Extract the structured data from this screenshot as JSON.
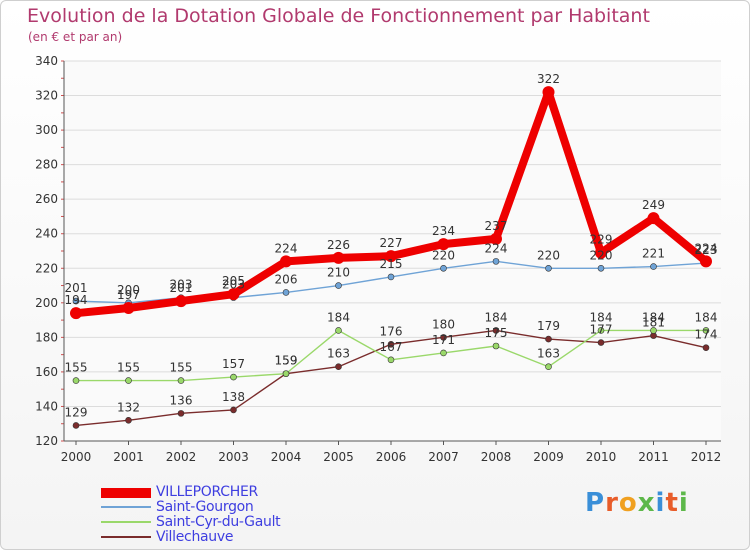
{
  "title": "Evolution de la Dotation Globale de Fonctionnement par Habitant",
  "subtitle": "(en € et par an)",
  "logo": {
    "text": "Proxiti",
    "letter_colors": [
      "#3a8fd8",
      "#e85d2a",
      "#f0a020",
      "#5db84a",
      "#3a8fd8",
      "#e85d2a",
      "#5db84a"
    ]
  },
  "chart_data": {
    "type": "line",
    "title": "Evolution de la Dotation Globale de Fonctionnement par Habitant",
    "subtitle": "(en € et par an)",
    "xlabel": "",
    "ylabel": "",
    "ylim": [
      120,
      340
    ],
    "yticks": [
      120,
      140,
      160,
      180,
      200,
      220,
      240,
      260,
      280,
      300,
      320,
      340
    ],
    "x": [
      "2000",
      "2001",
      "2002",
      "2003",
      "2004",
      "2005",
      "2006",
      "2007",
      "2008",
      "2009",
      "2010",
      "2011",
      "2012"
    ],
    "grid": "horizontal",
    "legend_position": "bottom-left",
    "series": [
      {
        "name": "VILLEPORCHER",
        "color": "#ee0000",
        "values": [
          194,
          197,
          201,
          205,
          224,
          226,
          227,
          234,
          237,
          322,
          229,
          249,
          224
        ],
        "labels": [
          "194",
          "197",
          "201",
          "205",
          "224",
          "226",
          "227",
          "234",
          "237",
          "322",
          "229",
          "249",
          "224"
        ]
      },
      {
        "name": "Saint-Gourgon",
        "color": "#6fa3d6",
        "values": [
          201,
          200,
          203,
          203,
          206,
          210,
          215,
          220,
          224,
          220,
          220,
          221,
          223
        ],
        "labels": [
          "201",
          "200",
          "203",
          "203",
          "206",
          "210",
          "215",
          "220",
          "224",
          "220",
          "220",
          "221",
          "223"
        ]
      },
      {
        "name": "Saint-Cyr-du-Gault",
        "color": "#9ad86a",
        "values": [
          155,
          155,
          155,
          157,
          159,
          184,
          167,
          171,
          175,
          163,
          184,
          184,
          184
        ],
        "labels": [
          "155",
          "155",
          "155",
          "157",
          "159",
          "184",
          "167",
          "171",
          "175",
          "163",
          "184",
          "184",
          "184"
        ]
      },
      {
        "name": "Villechauve",
        "color": "#7a2c2c",
        "values": [
          129,
          132,
          136,
          138,
          159,
          163,
          176,
          180,
          184,
          179,
          177,
          181,
          174
        ],
        "labels": [
          "129",
          "132",
          "136",
          "138",
          "159",
          "163",
          "176",
          "180",
          "184",
          "179",
          "177",
          "181",
          "174"
        ]
      }
    ]
  }
}
